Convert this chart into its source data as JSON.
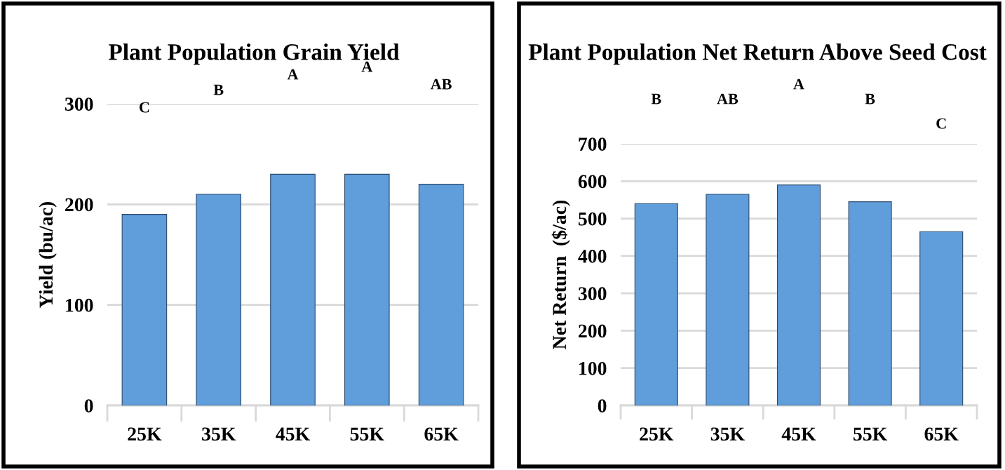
{
  "chart_data": [
    {
      "type": "bar",
      "title": "Plant Population Grain Yield",
      "ylabel": "Yield (bu/ac)",
      "categories": [
        "25K",
        "35K",
        "45K",
        "55K",
        "65K"
      ],
      "values": [
        190,
        210,
        230,
        230,
        220
      ],
      "color": "#5f9ddb",
      "ylim": [
        0,
        300
      ],
      "yticks": [
        0,
        100,
        200,
        300
      ],
      "grid": "y",
      "legend": false,
      "annotations": [
        "C",
        "B",
        "A",
        "A",
        "AB"
      ]
    },
    {
      "type": "bar",
      "title": "Plant Population Net Return Above Seed Cost",
      "ylabel": "Net Return  ($/ac)",
      "categories": [
        "25K",
        "35K",
        "45K",
        "55K",
        "65K"
      ],
      "values": [
        540,
        565,
        590,
        545,
        465
      ],
      "color": "#5f9ddb",
      "ylim": [
        0,
        700
      ],
      "yticks": [
        0,
        100,
        200,
        300,
        400,
        500,
        600,
        700
      ],
      "grid": "y",
      "legend": false,
      "annotations": [
        "B",
        "AB",
        "A",
        "B",
        "C"
      ]
    }
  ]
}
